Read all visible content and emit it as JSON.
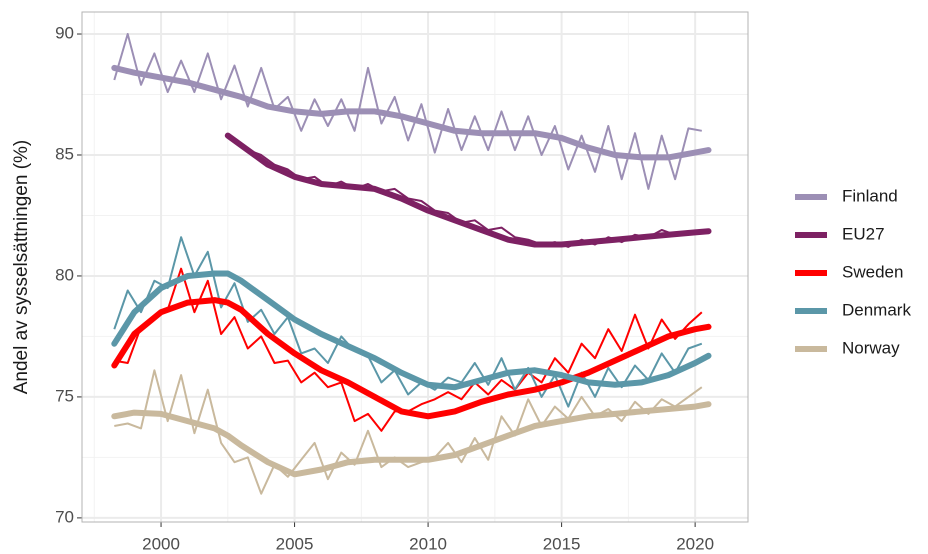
{
  "chart_data": {
    "type": "line",
    "y_label": "Andel av sysselsättningen (%)",
    "xlim": [
      1997.04,
      2021.98
    ],
    "ylim": [
      69.83,
      90.91
    ],
    "xticks": [
      2000,
      2005,
      2010,
      2015,
      2020
    ],
    "yticks": [
      70,
      75,
      80,
      85,
      90
    ],
    "xminor": [
      1997.5,
      2002.5,
      2007.5,
      2012.5,
      2017.5
    ],
    "yminor": [
      72.5,
      77.5,
      82.5,
      87.5
    ],
    "grid": true,
    "legend": "right",
    "x": [
      1998.25,
      1998.75,
      1999.25,
      1999.75,
      2000.25,
      2000.75,
      2001.25,
      2001.75,
      2002.25,
      2002.75,
      2003.25,
      2003.75,
      2004.25,
      2004.75,
      2005.25,
      2005.75,
      2006.25,
      2006.75,
      2007.25,
      2007.75,
      2008.25,
      2008.75,
      2009.25,
      2009.75,
      2010.25,
      2010.75,
      2011.25,
      2011.75,
      2012.25,
      2012.75,
      2013.25,
      2013.75,
      2014.25,
      2014.75,
      2015.25,
      2015.75,
      2016.25,
      2016.75,
      2017.25,
      2017.75,
      2018.25,
      2018.75,
      2019.25,
      2019.75,
      2020.25
    ],
    "trend_x": [
      1998.25,
      1999,
      2000,
      2001,
      2002,
      2002.5,
      2003,
      2004,
      2005,
      2006,
      2007,
      2008,
      2009,
      2010,
      2011,
      2012,
      2013,
      2014,
      2015,
      2016,
      2017,
      2018,
      2019,
      2020,
      2020.5
    ],
    "series": [
      {
        "name": "Finland",
        "color": "#9c8fb5",
        "values": [
          88.1,
          90.0,
          87.9,
          89.2,
          87.6,
          88.9,
          87.6,
          89.2,
          87.3,
          88.7,
          87.0,
          88.6,
          86.9,
          87.4,
          86.0,
          87.3,
          86.2,
          87.3,
          86.0,
          88.6,
          86.3,
          87.4,
          85.6,
          87.1,
          85.1,
          86.9,
          85.2,
          86.6,
          85.2,
          86.8,
          85.2,
          86.6,
          85.0,
          86.2,
          84.4,
          85.8,
          84.3,
          86.2,
          84.0,
          85.9,
          83.6,
          85.8,
          84.0,
          86.1,
          86.0
        ],
        "trend": [
          88.6,
          88.4,
          88.2,
          88.0,
          87.7,
          87.55,
          87.4,
          87.0,
          86.8,
          86.7,
          86.8,
          86.8,
          86.6,
          86.3,
          86.0,
          85.9,
          85.9,
          85.9,
          85.7,
          85.3,
          85.0,
          84.9,
          84.9,
          85.1,
          85.2
        ]
      },
      {
        "name": "EU27",
        "color": "#7d2163",
        "values": [
          null,
          null,
          null,
          null,
          null,
          null,
          null,
          null,
          null,
          85.6,
          85.2,
          85.0,
          84.6,
          84.4,
          84.0,
          84.1,
          83.7,
          83.9,
          83.6,
          83.8,
          83.5,
          83.6,
          83.2,
          83.1,
          82.7,
          82.6,
          82.2,
          82.3,
          81.9,
          82.0,
          81.6,
          81.5,
          81.3,
          81.4,
          81.2,
          81.5,
          81.3,
          81.6,
          81.4,
          81.7,
          81.6,
          81.9,
          81.7,
          81.8,
          81.9
        ],
        "trend": [
          null,
          null,
          null,
          null,
          null,
          85.8,
          85.4,
          84.6,
          84.1,
          83.8,
          83.7,
          83.6,
          83.2,
          82.7,
          82.3,
          81.9,
          81.5,
          81.3,
          81.3,
          81.4,
          81.5,
          81.6,
          81.7,
          81.8,
          81.85
        ]
      },
      {
        "name": "Sweden",
        "color": "#ff0000",
        "values": [
          76.5,
          76.4,
          77.9,
          78.3,
          78.6,
          80.3,
          78.5,
          79.8,
          77.6,
          78.3,
          77.0,
          77.5,
          76.4,
          76.5,
          75.6,
          76.0,
          75.4,
          75.6,
          74.0,
          74.3,
          73.6,
          74.4,
          74.4,
          74.7,
          74.9,
          75.2,
          74.9,
          75.6,
          75.1,
          75.7,
          75.3,
          76.0,
          75.6,
          76.6,
          76.0,
          77.2,
          76.6,
          77.8,
          76.9,
          78.4,
          77.0,
          78.2,
          77.4,
          78.0,
          78.5
        ],
        "trend": [
          76.3,
          77.6,
          78.5,
          78.9,
          79.0,
          78.9,
          78.6,
          77.6,
          76.8,
          76.1,
          75.6,
          75.0,
          74.4,
          74.2,
          74.4,
          74.8,
          75.1,
          75.3,
          75.6,
          76.0,
          76.5,
          77.0,
          77.5,
          77.8,
          77.9
        ]
      },
      {
        "name": "Denmark",
        "color": "#5b97a8",
        "values": [
          77.8,
          79.4,
          78.5,
          79.8,
          79.5,
          81.6,
          80.0,
          81.0,
          78.7,
          79.7,
          78.1,
          78.6,
          77.6,
          78.3,
          76.8,
          77.0,
          76.4,
          77.5,
          76.9,
          76.7,
          75.6,
          76.1,
          75.1,
          75.6,
          75.3,
          75.8,
          75.6,
          76.4,
          75.5,
          76.6,
          75.3,
          76.2,
          75.0,
          75.9,
          74.6,
          76.0,
          75.0,
          76.2,
          75.4,
          76.3,
          75.7,
          76.8,
          76.0,
          77.0,
          77.2
        ],
        "trend": [
          77.2,
          78.5,
          79.5,
          80.0,
          80.1,
          80.1,
          79.8,
          79.0,
          78.2,
          77.6,
          77.1,
          76.6,
          76.0,
          75.5,
          75.4,
          75.7,
          76.0,
          76.1,
          75.9,
          75.6,
          75.5,
          75.6,
          75.9,
          76.4,
          76.7
        ]
      },
      {
        "name": "Norway",
        "color": "#c9b99d",
        "values": [
          73.8,
          73.9,
          73.7,
          76.1,
          74.0,
          75.9,
          73.5,
          75.3,
          73.1,
          72.3,
          72.5,
          71.0,
          72.2,
          71.7,
          72.4,
          73.1,
          71.6,
          72.7,
          72.2,
          73.6,
          72.1,
          72.5,
          72.1,
          72.3,
          72.5,
          73.1,
          72.3,
          73.3,
          72.4,
          74.2,
          73.4,
          74.9,
          73.8,
          74.6,
          74.1,
          75.0,
          74.2,
          74.5,
          74.0,
          74.8,
          74.3,
          74.9,
          74.6,
          75.0,
          75.4
        ],
        "trend": [
          74.2,
          74.35,
          74.3,
          74.0,
          73.7,
          73.4,
          73.0,
          72.3,
          71.8,
          72.0,
          72.3,
          72.4,
          72.4,
          72.4,
          72.6,
          73.0,
          73.4,
          73.8,
          74.0,
          74.2,
          74.3,
          74.4,
          74.5,
          74.6,
          74.7
        ]
      }
    ]
  }
}
